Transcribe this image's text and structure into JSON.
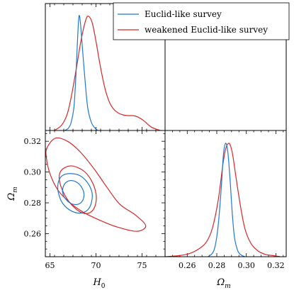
{
  "chart_data": {
    "type": "corner_plot",
    "parameters": [
      {
        "name": "H_0",
        "label_main": "H",
        "label_sub": "0"
      },
      {
        "name": "Omega_m",
        "label_main": "Ω",
        "label_sub": "m"
      }
    ],
    "axes": {
      "H_0": {
        "range": [
          64.5,
          77.5
        ],
        "ticks": [
          65,
          70,
          75
        ],
        "tick_labels": [
          "65",
          "70",
          "75"
        ]
      },
      "Omega_m": {
        "range": [
          0.245,
          0.327
        ],
        "ticks": [
          0.26,
          0.28,
          0.3,
          0.32
        ],
        "tick_labels": [
          "0.26",
          "0.28",
          "0.30",
          "0.32"
        ],
        "xtick_labels": [
          "0.26",
          "0.28",
          "0.30",
          "0.32"
        ]
      }
    },
    "legend": {
      "location": "top-right"
    },
    "series": [
      {
        "name": "Euclid-like survey",
        "color": "#1f77d4",
        "H_0_posterior": {
          "x": [
            66.6,
            67.0,
            67.3,
            67.6,
            67.8,
            68.0,
            68.15,
            68.3,
            68.5,
            68.8,
            69.1,
            69.5,
            69.9,
            70.2
          ],
          "y": [
            0.0,
            0.02,
            0.07,
            0.2,
            0.45,
            0.8,
            1.0,
            0.95,
            0.75,
            0.45,
            0.2,
            0.07,
            0.02,
            0.0
          ]
        },
        "Omega_m_posterior": {
          "x": [
            0.274,
            0.277,
            0.279,
            0.281,
            0.283,
            0.2845,
            0.286,
            0.2875,
            0.289,
            0.2905,
            0.292,
            0.294,
            0.296,
            0.299
          ],
          "y": [
            0.0,
            0.03,
            0.1,
            0.28,
            0.6,
            0.9,
            1.0,
            0.92,
            0.68,
            0.38,
            0.17,
            0.06,
            0.02,
            0.0
          ]
        },
        "contours_2d": [
          [
            [
              66.4,
              0.2895
            ],
            [
              66.7,
              0.293
            ],
            [
              67.3,
              0.2945
            ],
            [
              68.0,
              0.293
            ],
            [
              68.5,
              0.2895
            ],
            [
              68.7,
              0.2855
            ],
            [
              68.5,
              0.281
            ],
            [
              68.0,
              0.279
            ],
            [
              67.3,
              0.2795
            ],
            [
              66.7,
              0.2825
            ],
            [
              66.4,
              0.286
            ],
            [
              66.4,
              0.2895
            ]
          ],
          [
            [
              65.9,
              0.293
            ],
            [
              66.3,
              0.2975
            ],
            [
              67.2,
              0.299
            ],
            [
              68.3,
              0.2975
            ],
            [
              69.2,
              0.292
            ],
            [
              69.6,
              0.285
            ],
            [
              69.3,
              0.277
            ],
            [
              68.5,
              0.2735
            ],
            [
              67.4,
              0.2745
            ],
            [
              66.4,
              0.2795
            ],
            [
              65.9,
              0.287
            ],
            [
              65.9,
              0.293
            ]
          ]
        ]
      },
      {
        "name": "weakened Euclid-like survey",
        "color": "#d62728",
        "H_0_posterior": {
          "x": [
            65.5,
            66.3,
            66.9,
            67.4,
            67.9,
            68.4,
            68.9,
            69.2,
            69.6,
            70.0,
            70.5,
            71.0,
            71.5,
            72.0,
            72.5,
            73.0,
            73.5,
            74.0,
            74.5,
            75.2,
            76.0,
            77.0
          ],
          "y": [
            0.0,
            0.05,
            0.15,
            0.33,
            0.56,
            0.8,
            0.97,
            1.0,
            0.94,
            0.78,
            0.55,
            0.36,
            0.24,
            0.18,
            0.15,
            0.135,
            0.13,
            0.13,
            0.12,
            0.085,
            0.03,
            0.0
          ]
        },
        "Omega_m_posterior": {
          "x": [
            0.245,
            0.255,
            0.262,
            0.268,
            0.273,
            0.277,
            0.281,
            0.284,
            0.286,
            0.288,
            0.2895,
            0.291,
            0.293,
            0.296,
            0.299,
            0.303,
            0.308,
            0.313,
            0.318,
            0.323
          ],
          "y": [
            0.0,
            0.01,
            0.03,
            0.07,
            0.13,
            0.25,
            0.5,
            0.8,
            0.95,
            1.0,
            0.97,
            0.88,
            0.7,
            0.45,
            0.25,
            0.12,
            0.05,
            0.02,
            0.01,
            0.0
          ]
        },
        "contours_2d": [
          [
            [
              66.0,
              0.2965
            ],
            [
              66.3,
              0.3015
            ],
            [
              67.3,
              0.304
            ],
            [
              68.6,
              0.301
            ],
            [
              69.5,
              0.2945
            ],
            [
              70.0,
              0.286
            ],
            [
              69.9,
              0.278
            ],
            [
              69.3,
              0.2735
            ],
            [
              68.3,
              0.274
            ],
            [
              67.1,
              0.2805
            ],
            [
              66.3,
              0.289
            ],
            [
              66.0,
              0.2965
            ]
          ],
          [
            [
              64.7,
              0.316
            ],
            [
              65.6,
              0.322
            ],
            [
              66.9,
              0.32
            ],
            [
              68.3,
              0.313
            ],
            [
              69.8,
              0.302
            ],
            [
              71.2,
              0.29
            ],
            [
              72.6,
              0.279
            ],
            [
              74.3,
              0.272
            ],
            [
              75.4,
              0.265
            ],
            [
              74.4,
              0.2615
            ],
            [
              72.2,
              0.2645
            ],
            [
              70.3,
              0.269
            ],
            [
              68.6,
              0.274
            ],
            [
              67.2,
              0.28
            ],
            [
              65.9,
              0.288
            ],
            [
              65.0,
              0.299
            ],
            [
              64.6,
              0.31
            ],
            [
              64.7,
              0.316
            ]
          ]
        ]
      }
    ]
  }
}
